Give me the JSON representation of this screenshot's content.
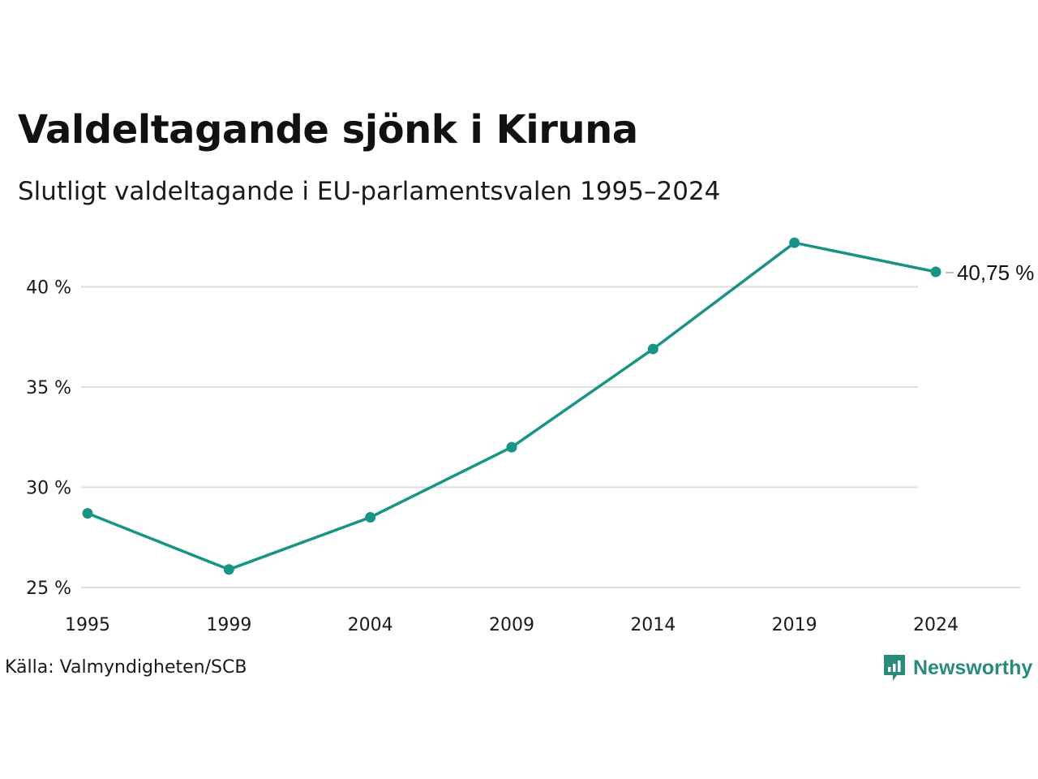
{
  "title": "Valdeltagande sjönk i Kiruna",
  "subtitle": "Slutligt valdeltagande i EU-parlamentsvalen 1995–2024",
  "source": "Källa: Valmyndigheten/SCB",
  "brand": {
    "name": "Newsworthy",
    "color": "#2a8a7b",
    "icon": "newsworthy-logo-icon"
  },
  "chart_data": {
    "type": "line",
    "x": [
      "1995",
      "1999",
      "2004",
      "2009",
      "2014",
      "2019",
      "2024"
    ],
    "series": [
      {
        "values": [
          28.7,
          25.9,
          28.5,
          32.0,
          36.9,
          42.2,
          40.75
        ],
        "color": "#179485"
      }
    ],
    "yticks": [
      {
        "value": 25,
        "label": "25 %"
      },
      {
        "value": 30,
        "label": "30 %"
      },
      {
        "value": 35,
        "label": "35 %"
      },
      {
        "value": 40,
        "label": "40 %"
      }
    ],
    "ylim": [
      25,
      43.2
    ],
    "grid": true,
    "end_label": "40,75 %",
    "gridline_color": "#dedede"
  }
}
